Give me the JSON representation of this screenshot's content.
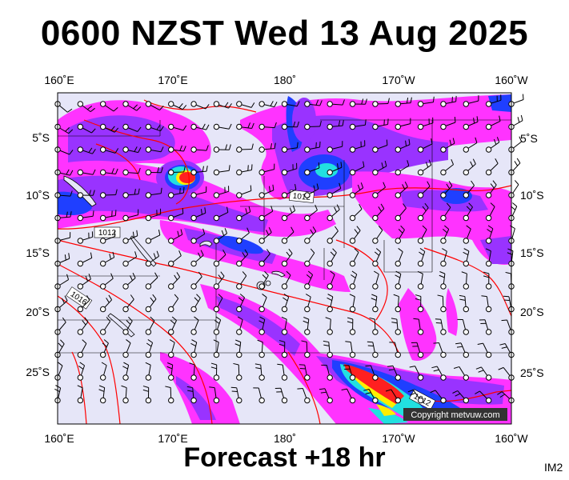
{
  "header": {
    "title": "0600 NZST Wed 13 Aug 2025"
  },
  "footer": {
    "forecast_label": "Forecast +18 hr",
    "product_code": "IM2"
  },
  "map": {
    "lon_labels": [
      "160˚E",
      "170˚E",
      "180˚",
      "170˚W",
      "160˚W"
    ],
    "lat_labels": [
      "5˚S",
      "10˚S",
      "15˚S",
      "20˚S",
      "25˚S"
    ],
    "isobar_labels": [
      "1012",
      "1012",
      "1016",
      "1012"
    ],
    "copyright": "Copyright metvuw.com",
    "colors": {
      "background": "#e6e6f8",
      "precip_light": "#ff33ff",
      "precip_moderate": "#9933ff",
      "precip_heavy": "#1f3fff",
      "precip_very_heavy": "#22e0e0",
      "precip_intense": "#ffee00",
      "precip_extreme": "#ff2020",
      "isobar": "#ff0000",
      "coastline": "#000000"
    }
  }
}
